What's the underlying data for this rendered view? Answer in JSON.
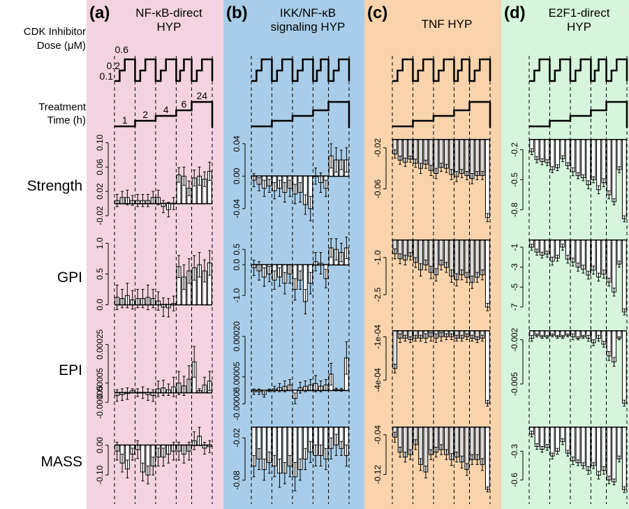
{
  "labels": {
    "cdk": [
      "CDK Inhibitor",
      "Dose (μM)"
    ],
    "treatment": [
      "Treatment",
      "Time (h)"
    ],
    "doses": [
      "0.1",
      "0.2",
      "0.6"
    ],
    "times": [
      "1",
      "2",
      "4",
      "6",
      "24"
    ]
  },
  "colors": {
    "a": "#f2d3df",
    "b": "#a9cde8",
    "c": "#f8d3ab",
    "d": "#d6f5dc",
    "bar_white": "#ffffff",
    "bar_grey": "#dcdcdc"
  },
  "chart_data": {
    "type": "bar",
    "rows": [
      "Strength",
      "GPI",
      "EPI",
      "MASS"
    ],
    "panels": [
      {
        "letter": "(a)",
        "title": [
          "NF-κB-direct",
          "HYP"
        ],
        "bg": "#f2d3df",
        "rows": [
          {
            "ticks": [
              "-0.02",
              "0.02",
              "0.06",
              "0.10"
            ],
            "tickvals": [
              -0.02,
              0.02,
              0.06,
              0.1
            ],
            "ylim": [
              -0.035,
              0.105
            ],
            "values": [
              0.005,
              0.01,
              0.01,
              0.005,
              0.005,
              0.005,
              0.005,
              0.01,
              0.01,
              -0.005,
              -0.01,
              0.0,
              0.047,
              0.045,
              0.025,
              0.042,
              0.045,
              0.04,
              0.053
            ],
            "errors": [
              0.01,
              0.01,
              0.012,
              0.008,
              0.01,
              0.01,
              0.01,
              0.01,
              0.012,
              0.01,
              0.012,
              0.01,
              0.012,
              0.015,
              0.012,
              0.013,
              0.015,
              0.012,
              0.015
            ]
          },
          {
            "ticks": [
              "0.0",
              "0.5",
              "1.0"
            ],
            "tickvals": [
              0.0,
              0.5,
              1.0
            ],
            "ylim": [
              -0.2,
              1.05
            ],
            "values": [
              0.12,
              0.1,
              0.15,
              0.08,
              0.1,
              0.1,
              0.12,
              0.1,
              0.06,
              -0.04,
              -0.05,
              0.02,
              0.62,
              0.45,
              0.55,
              0.6,
              0.65,
              0.55,
              0.68
            ],
            "errors": [
              0.2,
              0.15,
              0.2,
              0.15,
              0.15,
              0.15,
              0.2,
              0.15,
              0.15,
              0.15,
              0.15,
              0.12,
              0.18,
              0.2,
              0.2,
              0.2,
              0.2,
              0.18,
              0.2
            ]
          },
          {
            "ticks": [
              "-0.00005",
              "0.00005",
              "0.00025"
            ],
            "tickvals": [
              -5e-05,
              5e-05,
              0.00025
            ],
            "ylim": [
              -0.0001,
              0.00032
            ],
            "values": [
              -1.5e-05,
              -1e-05,
              -5e-06,
              1e-05,
              0.0,
              0.0,
              -1e-05,
              -1.5e-05,
              2e-05,
              2.5e-05,
              1.5e-05,
              3e-05,
              5e-05,
              3.5e-05,
              7e-05,
              0.00016,
              1e-05,
              4e-05,
              6e-05
            ],
            "errors": [
              3e-05,
              3e-05,
              3e-05,
              1e-05,
              2e-05,
              3e-05,
              3e-05,
              3e-05,
              4e-05,
              4e-05,
              3e-05,
              5e-05,
              6e-05,
              5e-05,
              7e-05,
              8e-05,
              1e-05,
              4e-05,
              5e-05
            ]
          },
          {
            "ticks": [
              "-0.10",
              "0.00"
            ],
            "tickvals": [
              -0.1,
              0.0
            ],
            "ylim": [
              -0.165,
              0.06
            ],
            "values": [
              -0.02,
              -0.06,
              -0.08,
              -0.03,
              -0.015,
              -0.09,
              -0.1,
              -0.07,
              -0.04,
              -0.04,
              -0.03,
              -0.02,
              -0.02,
              -0.03,
              -0.02,
              0.015,
              0.03,
              -0.01,
              -0.005
            ],
            "errors": [
              0.03,
              0.03,
              0.03,
              0.02,
              0.03,
              0.03,
              0.03,
              0.03,
              0.03,
              0.03,
              0.03,
              0.03,
              0.03,
              0.03,
              0.03,
              0.03,
              0.03,
              0.02,
              0.02
            ]
          }
        ]
      },
      {
        "letter": "(b)",
        "title": [
          "IKK/NF-κB",
          "signaling HYP"
        ],
        "bg": "#a9cde8",
        "rows": [
          {
            "ticks": [
              "-0.04",
              "0.00",
              "0.04"
            ],
            "tickvals": [
              -0.04,
              0.0,
              0.04
            ],
            "ylim": [
              -0.06,
              0.045
            ],
            "values": [
              -0.005,
              -0.01,
              -0.015,
              -0.012,
              -0.018,
              -0.015,
              -0.02,
              -0.015,
              -0.022,
              -0.02,
              -0.035,
              -0.04,
              0.0,
              -0.008,
              -0.015,
              0.025,
              0.02,
              0.02,
              0.02
            ],
            "errors": [
              0.008,
              0.008,
              0.01,
              0.008,
              0.01,
              0.01,
              0.012,
              0.01,
              0.012,
              0.012,
              0.012,
              0.015,
              0.01,
              0.012,
              0.01,
              0.015,
              0.015,
              0.012,
              0.015
            ]
          },
          {
            "ticks": [
              "-1.0",
              "0.0",
              "0.5"
            ],
            "tickvals": [
              -1.0,
              0.0,
              0.5
            ],
            "ylim": [
              -1.7,
              0.8
            ],
            "values": [
              -0.1,
              -0.2,
              -0.4,
              -0.3,
              -0.5,
              -0.4,
              -0.6,
              -0.3,
              -0.8,
              -0.5,
              -1.2,
              -0.6,
              0.1,
              0.05,
              -0.45,
              0.55,
              0.5,
              0.4,
              0.55
            ],
            "errors": [
              0.25,
              0.3,
              0.3,
              0.25,
              0.3,
              0.3,
              0.35,
              0.3,
              0.35,
              0.3,
              0.4,
              0.35,
              0.3,
              0.35,
              0.3,
              0.3,
              0.35,
              0.3,
              0.35
            ]
          },
          {
            "ticks": [
              "-0.00005",
              "0.00005",
              "0.00020"
            ],
            "tickvals": [
              -5e-05,
              5e-05,
              0.0002
            ],
            "ylim": [
              -8e-05,
              0.00022
            ],
            "values": [
              -5e-06,
              -5e-06,
              -1.5e-05,
              0.0,
              5e-06,
              1e-05,
              1.5e-05,
              2e-05,
              -3e-05,
              1e-05,
              1.5e-05,
              2e-05,
              2.5e-05,
              1.5e-05,
              2e-05,
              6e-05,
              3e-06,
              2e-06,
              0.00012
            ],
            "errors": [
              1e-05,
              1e-05,
              1e-05,
              5e-06,
              1e-05,
              1.5e-05,
              2e-05,
              2e-05,
              2e-05,
              2e-05,
              2e-05,
              2e-05,
              3e-05,
              2e-05,
              2e-05,
              4e-05,
              5e-06,
              5e-06,
              6e-05
            ]
          },
          {
            "ticks": [
              "-0.08",
              "-0.02"
            ],
            "tickvals": [
              -0.08,
              -0.02
            ],
            "ylim": [
              -0.1,
              -0.005
            ],
            "values": [
              -0.06,
              -0.05,
              -0.065,
              -0.055,
              -0.06,
              -0.07,
              -0.07,
              -0.06,
              -0.075,
              -0.065,
              -0.05,
              -0.04,
              -0.045,
              -0.045,
              -0.05,
              -0.035,
              -0.03,
              -0.035,
              -0.045
            ],
            "errors": [
              0.015,
              0.015,
              0.015,
              0.015,
              0.015,
              0.02,
              0.015,
              0.015,
              0.02,
              0.015,
              0.015,
              0.015,
              0.015,
              0.015,
              0.015,
              0.015,
              0.015,
              0.01,
              0.015
            ]
          }
        ]
      },
      {
        "letter": "(c)",
        "title": [
          "TNF HYP"
        ],
        "bg": "#f8d3ab",
        "rows": [
          {
            "ticks": [
              "-0.06",
              "-0.02"
            ],
            "tickvals": [
              -0.06,
              -0.02
            ],
            "ylim": [
              -0.095,
              -0.012
            ],
            "values": [
              -0.026,
              -0.032,
              -0.034,
              -0.031,
              -0.035,
              -0.04,
              -0.036,
              -0.042,
              -0.045,
              -0.039,
              -0.04,
              -0.046,
              -0.048,
              -0.045,
              -0.047,
              -0.05,
              -0.047,
              -0.047,
              -0.088
            ],
            "errors": [
              0.004,
              0.004,
              0.004,
              0.003,
              0.004,
              0.005,
              0.004,
              0.005,
              0.005,
              0.004,
              0.004,
              0.005,
              0.005,
              0.004,
              0.004,
              0.005,
              0.004,
              0.004,
              0.004
            ]
          },
          {
            "ticks": [
              "-2.5",
              "-1.0"
            ],
            "tickvals": [
              -2.5,
              -1.0
            ],
            "ylim": [
              -3.4,
              -0.3
            ],
            "values": [
              -0.85,
              -1.05,
              -1.1,
              -0.95,
              -1.2,
              -1.5,
              -1.3,
              -1.6,
              -1.7,
              -1.3,
              -1.4,
              -1.75,
              -1.9,
              -1.7,
              -1.8,
              -2.0,
              -1.8,
              -1.7,
              -3.0
            ],
            "errors": [
              0.2,
              0.2,
              0.2,
              0.15,
              0.2,
              0.25,
              0.2,
              0.25,
              0.25,
              0.2,
              0.2,
              0.25,
              0.25,
              0.2,
              0.2,
              0.25,
              0.2,
              0.2,
              0.15
            ]
          },
          {
            "ticks": [
              "-4e-04",
              "-1e-04"
            ],
            "tickvals": [
              -0.0004,
              -0.0001
            ],
            "ylim": [
              -0.00062,
              -6e-05
            ],
            "values": [
              -0.00032,
              -0.00011,
              -0.00011,
              -0.00012,
              -0.00011,
              -0.00011,
              -0.00011,
              -0.0001,
              -0.00011,
              -0.0001,
              -0.0001,
              -0.0001,
              -0.00011,
              -0.00011,
              -0.0001,
              -0.00011,
              -0.00012,
              -0.00011,
              -0.00056
            ],
            "errors": [
              3e-05,
              3e-05,
              2e-05,
              2e-05,
              2e-05,
              2e-05,
              3e-05,
              3e-05,
              3e-05,
              3e-05,
              2e-05,
              2e-05,
              2e-05,
              2e-05,
              2e-05,
              2e-05,
              2e-05,
              2e-05,
              2e-05
            ]
          },
          {
            "ticks": [
              "-0.12",
              "-0.04"
            ],
            "tickvals": [
              -0.12,
              -0.04
            ],
            "ylim": [
              -0.16,
              -0.025
            ],
            "values": [
              -0.045,
              -0.075,
              -0.085,
              -0.08,
              -0.06,
              -0.1,
              -0.115,
              -0.08,
              -0.075,
              -0.07,
              -0.08,
              -0.09,
              -0.085,
              -0.095,
              -0.11,
              -0.09,
              -0.09,
              -0.1,
              -0.15
            ],
            "errors": [
              0.01,
              0.01,
              0.01,
              0.01,
              0.01,
              0.012,
              0.012,
              0.01,
              0.01,
              0.01,
              0.01,
              0.012,
              0.01,
              0.012,
              0.012,
              0.01,
              0.01,
              0.012,
              0.005
            ]
          }
        ]
      },
      {
        "letter": "(d)",
        "title": [
          "E2F1-direct",
          "HYP"
        ],
        "bg": "#d6f5dc",
        "rows": [
          {
            "ticks": [
              "-0.8",
              "-0.5",
              "-0.2"
            ],
            "tickvals": [
              -0.8,
              -0.5,
              -0.2
            ],
            "ylim": [
              -0.95,
              -0.1
            ],
            "values": [
              -0.22,
              -0.3,
              -0.32,
              -0.33,
              -0.4,
              -0.38,
              -0.29,
              -0.36,
              -0.42,
              -0.46,
              -0.48,
              -0.55,
              -0.5,
              -0.6,
              -0.53,
              -0.65,
              -0.72,
              -0.4,
              -0.89
            ],
            "errors": [
              0.03,
              0.03,
              0.03,
              0.03,
              0.03,
              0.03,
              0.03,
              0.03,
              0.04,
              0.03,
              0.03,
              0.04,
              0.03,
              0.04,
              0.04,
              0.04,
              0.03,
              0.03,
              0.03
            ]
          },
          {
            "ticks": [
              "-7",
              "-5",
              "-3",
              "-1"
            ],
            "tickvals": [
              -7,
              -5,
              -3,
              -1
            ],
            "ylim": [
              -8.0,
              -0.3
            ],
            "values": [
              -1.0,
              -1.5,
              -1.8,
              -1.7,
              -2.4,
              -2.1,
              -1.0,
              -2.2,
              -2.5,
              -3.0,
              -3.2,
              -3.8,
              -3.3,
              -4.0,
              -3.7,
              -4.5,
              -5.5,
              -2.7,
              -7.5
            ],
            "errors": [
              0.3,
              0.3,
              0.3,
              0.3,
              0.4,
              0.3,
              0.3,
              0.4,
              0.4,
              0.4,
              0.4,
              0.4,
              0.4,
              0.4,
              0.4,
              0.4,
              0.4,
              0.3,
              0.3
            ]
          },
          {
            "ticks": [
              "-0.005",
              "-0.002"
            ],
            "tickvals": [
              -0.005,
              -0.002
            ],
            "ylim": [
              -0.0069,
              -0.0014
            ],
            "values": [
              -0.0019,
              -0.0017,
              -0.0018,
              -0.0018,
              -0.0017,
              -0.0018,
              -0.0018,
              -0.0017,
              -0.0018,
              -0.0019,
              -0.0018,
              -0.0019,
              -0.0022,
              -0.0019,
              -0.0023,
              -0.0031,
              -0.0035,
              -0.0019,
              -0.0063
            ],
            "errors": [
              0.0002,
              0.0001,
              0.0001,
              0.0001,
              0.0001,
              0.0001,
              0.0001,
              0.0001,
              0.0002,
              0.0001,
              0.0001,
              0.0002,
              0.0002,
              0.0002,
              0.0002,
              0.0003,
              0.0003,
              0.0001,
              0.0002
            ]
          },
          {
            "ticks": [
              "-0.6",
              "-0.3"
            ],
            "tickvals": [
              -0.6,
              -0.3
            ],
            "ylim": [
              -0.75,
              -0.05
            ],
            "values": [
              -0.12,
              -0.25,
              -0.28,
              -0.26,
              -0.35,
              -0.3,
              -0.2,
              -0.32,
              -0.4,
              -0.42,
              -0.45,
              -0.5,
              -0.45,
              -0.55,
              -0.5,
              -0.6,
              -0.62,
              -0.38,
              -0.7
            ],
            "errors": [
              0.03,
              0.03,
              0.03,
              0.03,
              0.03,
              0.03,
              0.03,
              0.03,
              0.04,
              0.03,
              0.03,
              0.04,
              0.03,
              0.04,
              0.04,
              0.04,
              0.03,
              0.03,
              0.03
            ]
          }
        ]
      }
    ]
  }
}
